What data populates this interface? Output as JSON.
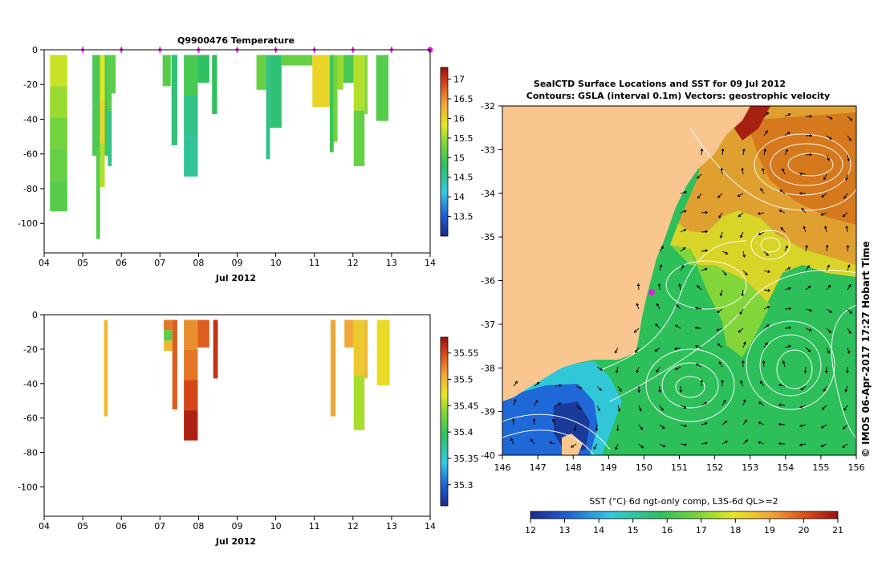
{
  "colors": {
    "map_land": "#f9c690",
    "map_contour": "#ffffff",
    "map_vector": "#000000",
    "marker": "#e020e0",
    "axis": "#000000"
  },
  "chart_data": [
    {
      "id": "temperature_profiles",
      "type": "heatmap",
      "title": "Q9900476  Temperature",
      "xlabel": "Jul 2012",
      "ylabel": "",
      "x_tick_labels": [
        "04",
        "05",
        "06",
        "07",
        "08",
        "09",
        "10",
        "11",
        "12",
        "13",
        "14"
      ],
      "xlim": [
        4,
        14
      ],
      "ylim": [
        -117,
        0
      ],
      "y_ticks": [
        0,
        -20,
        -40,
        -60,
        -80,
        -100
      ],
      "colorbar": {
        "min": 13,
        "max": 17.3,
        "ticks": [
          13.5,
          14,
          14.5,
          15,
          15.5,
          16,
          16.5,
          17
        ]
      },
      "surfacing_markers": [
        5,
        6,
        7,
        8,
        9,
        10,
        11,
        12,
        13,
        14
      ],
      "profiles": [
        {
          "t0": 4.15,
          "t1": 4.6,
          "depth": 93,
          "values": [
            15.7,
            15.5,
            15.3,
            15.2,
            15.1
          ]
        },
        {
          "t0": 5.25,
          "t1": 5.35,
          "depth": 61,
          "values": [
            15.0,
            15.0
          ]
        },
        {
          "t0": 5.35,
          "t1": 5.45,
          "depth": 109,
          "values": [
            15.0,
            15.1
          ]
        },
        {
          "t0": 5.45,
          "t1": 5.57,
          "depth": 79,
          "values": [
            15.8,
            16.0,
            15.6
          ]
        },
        {
          "t0": 5.57,
          "t1": 5.65,
          "depth": 61,
          "values": [
            15.0,
            14.9
          ]
        },
        {
          "t0": 5.65,
          "t1": 5.75,
          "depth": 67,
          "values": [
            15.1,
            14.6
          ]
        },
        {
          "t0": 5.75,
          "t1": 5.85,
          "depth": 25,
          "values": [
            15.1
          ]
        },
        {
          "t0": 7.07,
          "t1": 7.28,
          "depth": 21,
          "values": [
            15.1
          ]
        },
        {
          "t0": 7.3,
          "t1": 7.45,
          "depth": 55,
          "values": [
            14.7
          ]
        },
        {
          "t0": 7.62,
          "t1": 7.98,
          "depth": 73,
          "values": [
            15.0,
            14.6,
            14.5
          ]
        },
        {
          "t0": 7.98,
          "t1": 8.28,
          "depth": 19,
          "values": [
            14.8
          ]
        },
        {
          "t0": 8.35,
          "t1": 8.48,
          "depth": 37,
          "values": [
            14.8
          ]
        },
        {
          "t0": 9.5,
          "t1": 9.75,
          "depth": 23,
          "values": [
            15.2
          ]
        },
        {
          "t0": 9.75,
          "t1": 9.85,
          "depth": 63,
          "values": [
            14.6
          ]
        },
        {
          "t0": 9.85,
          "t1": 10.15,
          "depth": 45,
          "values": [
            14.7
          ]
        },
        {
          "t0": 10.15,
          "t1": 10.95,
          "depth": 9,
          "values": [
            15.2
          ]
        },
        {
          "t0": 10.95,
          "t1": 11.4,
          "depth": 33,
          "values": [
            16.0
          ]
        },
        {
          "t0": 11.4,
          "t1": 11.5,
          "depth": 59,
          "values": [
            14.9
          ]
        },
        {
          "t0": 11.5,
          "t1": 11.6,
          "depth": 53,
          "values": [
            15.3
          ]
        },
        {
          "t0": 11.6,
          "t1": 11.75,
          "depth": 23,
          "values": [
            15.5
          ]
        },
        {
          "t0": 11.75,
          "t1": 12.02,
          "depth": 19,
          "values": [
            15.0
          ]
        },
        {
          "t0": 12.02,
          "t1": 12.3,
          "depth": 67,
          "values": [
            15.6,
            15.2
          ]
        },
        {
          "t0": 12.3,
          "t1": 12.38,
          "depth": 37,
          "values": [
            15.4
          ]
        },
        {
          "t0": 12.6,
          "t1": 12.92,
          "depth": 41,
          "values": [
            15.1
          ]
        }
      ]
    },
    {
      "id": "salinity_profiles",
      "type": "heatmap",
      "title": "",
      "xlabel": "Jul 2012",
      "ylabel": "",
      "x_tick_labels": [
        "04",
        "05",
        "06",
        "07",
        "08",
        "09",
        "10",
        "11",
        "12",
        "13",
        "14"
      ],
      "xlim": [
        4,
        14
      ],
      "ylim": [
        -117,
        0
      ],
      "y_ticks": [
        0,
        -20,
        -40,
        -60,
        -80,
        -100
      ],
      "colorbar": {
        "min": 35.26,
        "max": 35.58,
        "ticks": [
          35.3,
          35.35,
          35.4,
          35.45,
          35.5,
          35.55
        ]
      },
      "profiles": [
        {
          "t0": 5.55,
          "t1": 5.65,
          "depth": 59,
          "values": [
            35.5
          ]
        },
        {
          "t0": 7.1,
          "t1": 7.32,
          "depth": 21,
          "values": [
            35.53,
            35.42,
            35.5
          ]
        },
        {
          "t0": 7.32,
          "t1": 7.45,
          "depth": 55,
          "values": [
            35.54
          ]
        },
        {
          "t0": 7.62,
          "t1": 7.98,
          "depth": 73,
          "values": [
            35.52,
            35.53,
            35.55,
            35.57
          ]
        },
        {
          "t0": 7.98,
          "t1": 8.28,
          "depth": 19,
          "values": [
            35.54
          ]
        },
        {
          "t0": 8.38,
          "t1": 8.5,
          "depth": 37,
          "values": [
            35.56
          ]
        },
        {
          "t0": 11.42,
          "t1": 11.55,
          "depth": 59,
          "values": [
            35.51
          ]
        },
        {
          "t0": 11.78,
          "t1": 12.02,
          "depth": 19,
          "values": [
            35.51
          ]
        },
        {
          "t0": 12.02,
          "t1": 12.3,
          "depth": 67,
          "values": [
            35.49,
            35.45
          ]
        },
        {
          "t0": 12.3,
          "t1": 12.38,
          "depth": 37,
          "values": [
            35.5
          ]
        },
        {
          "t0": 12.62,
          "t1": 12.95,
          "depth": 41,
          "values": [
            35.48
          ]
        }
      ]
    },
    {
      "id": "sst_map",
      "type": "heatmap",
      "title": "SealCTD Surface Locations and SST for 09 Jul 2012",
      "subtitle": "Contours: GSLA (interval 0.1m) Vectors: geostrophic velocity",
      "xlim": [
        146,
        156
      ],
      "ylim": [
        -40,
        -32
      ],
      "x_tick_labels": [
        "146",
        "147",
        "148",
        "149",
        "150",
        "151",
        "152",
        "153",
        "154",
        "155",
        "156"
      ],
      "y_tick_labels": [
        "-32",
        "-33",
        "-34",
        "-35",
        "-36",
        "-37",
        "-38",
        "-39",
        "-40"
      ],
      "colorbar_label": "SST (°C) 6d ngt-only comp, L3S-6d QL>=2",
      "colorbar": {
        "min": 12,
        "max": 21,
        "ticks": [
          12,
          13,
          14,
          15,
          16,
          17,
          18,
          19,
          20,
          21
        ]
      },
      "credit": "© IMOS 06-Apr-2017 17:27 Hobart Time",
      "seal_location": [
        150.3,
        -36.25
      ]
    }
  ]
}
